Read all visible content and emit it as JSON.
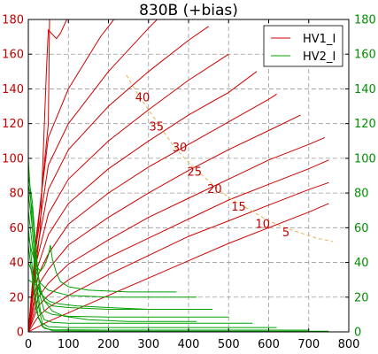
{
  "chart_data": {
    "type": "line",
    "title": "830B (+bias)",
    "xlabel": "",
    "ylabel": "",
    "xlim": [
      0,
      800
    ],
    "ylim": [
      0,
      180
    ],
    "xticks": [
      "0",
      "100",
      "200",
      "300",
      "400",
      "500",
      "600",
      "700",
      "800"
    ],
    "yticks_left": [
      "0",
      "20",
      "40",
      "60",
      "80",
      "100",
      "120",
      "140",
      "160",
      "180"
    ],
    "yticks_right": [
      "0",
      "20",
      "40",
      "60",
      "80",
      "100",
      "120",
      "140",
      "160",
      "180"
    ],
    "grid": true,
    "legend_position": "top-right",
    "legend": [
      {
        "label": "HV1_I",
        "color": "#d00000"
      },
      {
        "label": "HV2_I",
        "color": "#00a000"
      }
    ],
    "colors": {
      "red": "#d00000",
      "green": "#00a000",
      "dissipation": "#e8b44c",
      "left_axis": "#c00000",
      "right_axis": "#009000"
    },
    "series": [
      {
        "group": "HV1_I",
        "points": [
          [
            0,
            0
          ],
          [
            20,
            50
          ],
          [
            50,
            120
          ],
          [
            53,
            182
          ]
        ]
      },
      {
        "group": "HV1_I",
        "points": [
          [
            0,
            0
          ],
          [
            30,
            60
          ],
          [
            45,
            150
          ],
          [
            50,
            174
          ],
          [
            70,
            169
          ],
          [
            80,
            172
          ],
          [
            100,
            182
          ]
        ]
      },
      {
        "group": "HV1_I",
        "points": [
          [
            0,
            0
          ],
          [
            20,
            55
          ],
          [
            50,
            112
          ],
          [
            100,
            140
          ],
          [
            180,
            170
          ],
          [
            220,
            182
          ]
        ]
      },
      {
        "group": "HV1_I",
        "points": [
          [
            0,
            0
          ],
          [
            20,
            50
          ],
          [
            50,
            96
          ],
          [
            100,
            120
          ],
          [
            200,
            150
          ],
          [
            300,
            175
          ],
          [
            330,
            182
          ]
        ]
      },
      {
        "group": "HV1_I",
        "points": [
          [
            0,
            0
          ],
          [
            20,
            45
          ],
          [
            50,
            82
          ],
          [
            100,
            105
          ],
          [
            200,
            130
          ],
          [
            300,
            150
          ],
          [
            400,
            168
          ],
          [
            450,
            176
          ]
        ]
      },
      {
        "group": "HV1_I",
        "points": [
          [
            0,
            0
          ],
          [
            20,
            40
          ],
          [
            50,
            68
          ],
          [
            100,
            88
          ],
          [
            200,
            110
          ],
          [
            300,
            128
          ],
          [
            400,
            145
          ],
          [
            500,
            160
          ]
        ]
      },
      {
        "group": "HV1_I",
        "points": [
          [
            0,
            0
          ],
          [
            20,
            35
          ],
          [
            50,
            56
          ],
          [
            100,
            74
          ],
          [
            200,
            94
          ],
          [
            300,
            110
          ],
          [
            400,
            125
          ],
          [
            500,
            138
          ],
          [
            570,
            150
          ]
        ]
      },
      {
        "group": "HV1_I",
        "points": [
          [
            0,
            0
          ],
          [
            25,
            33
          ],
          [
            50,
            45
          ],
          [
            100,
            62
          ],
          [
            200,
            80
          ],
          [
            300,
            95
          ],
          [
            400,
            108
          ],
          [
            500,
            121
          ],
          [
            600,
            134
          ],
          [
            620,
            137
          ]
        ]
      },
      {
        "group": "HV1_I",
        "points": [
          [
            0,
            0
          ],
          [
            25,
            27
          ],
          [
            50,
            36
          ],
          [
            100,
            50
          ],
          [
            200,
            66
          ],
          [
            300,
            80
          ],
          [
            400,
            93
          ],
          [
            500,
            105
          ],
          [
            600,
            116
          ],
          [
            680,
            125
          ]
        ]
      },
      {
        "group": "HV1_I",
        "points": [
          [
            0,
            0
          ],
          [
            25,
            20
          ],
          [
            50,
            28
          ],
          [
            100,
            39
          ],
          [
            200,
            53
          ],
          [
            300,
            66
          ],
          [
            400,
            77
          ],
          [
            500,
            88
          ],
          [
            600,
            99
          ],
          [
            700,
            108
          ],
          [
            740,
            112
          ]
        ]
      },
      {
        "group": "HV1_I",
        "points": [
          [
            0,
            0
          ],
          [
            25,
            15
          ],
          [
            50,
            21
          ],
          [
            100,
            30
          ],
          [
            200,
            43
          ],
          [
            300,
            54
          ],
          [
            400,
            65
          ],
          [
            500,
            76
          ],
          [
            600,
            85
          ],
          [
            700,
            94
          ],
          [
            750,
            99
          ]
        ]
      },
      {
        "group": "HV1_I",
        "points": [
          [
            0,
            0
          ],
          [
            25,
            9
          ],
          [
            50,
            14
          ],
          [
            100,
            21
          ],
          [
            200,
            33
          ],
          [
            300,
            44
          ],
          [
            400,
            55
          ],
          [
            500,
            64
          ],
          [
            600,
            73
          ],
          [
            700,
            82
          ],
          [
            750,
            86
          ]
        ]
      },
      {
        "group": "HV1_I",
        "points": [
          [
            0,
            0
          ],
          [
            50,
            6
          ],
          [
            100,
            11
          ],
          [
            200,
            21
          ],
          [
            300,
            31
          ],
          [
            400,
            41
          ],
          [
            500,
            51
          ],
          [
            600,
            60
          ],
          [
            700,
            69
          ],
          [
            750,
            74
          ]
        ]
      },
      {
        "group": "HV2_I",
        "points": [
          [
            0,
            100
          ],
          [
            5,
            80
          ],
          [
            10,
            60
          ],
          [
            15,
            45
          ],
          [
            20,
            35
          ],
          [
            30,
            28
          ],
          [
            50,
            24
          ],
          [
            100,
            21
          ],
          [
            200,
            20
          ],
          [
            350,
            20
          ],
          [
            420,
            20
          ]
        ]
      },
      {
        "group": "HV2_I",
        "points": [
          [
            0,
            55
          ],
          [
            10,
            45
          ],
          [
            20,
            38
          ],
          [
            30,
            35
          ],
          [
            40,
            38
          ],
          [
            50,
            44
          ],
          [
            55,
            50
          ],
          [
            60,
            42
          ],
          [
            70,
            34
          ],
          [
            80,
            29
          ],
          [
            100,
            26
          ],
          [
            150,
            24
          ],
          [
            250,
            23
          ],
          [
            370,
            23
          ]
        ]
      },
      {
        "group": "HV2_I",
        "points": [
          [
            0,
            85
          ],
          [
            10,
            70
          ],
          [
            20,
            40
          ],
          [
            30,
            25
          ],
          [
            40,
            18
          ],
          [
            60,
            15
          ],
          [
            100,
            14
          ],
          [
            200,
            13
          ],
          [
            300,
            13
          ],
          [
            460,
            13
          ]
        ]
      },
      {
        "group": "HV2_I",
        "points": [
          [
            0,
            90
          ],
          [
            10,
            75
          ],
          [
            20,
            45
          ],
          [
            30,
            20
          ],
          [
            40,
            12
          ],
          [
            60,
            10
          ],
          [
            100,
            9
          ],
          [
            200,
            8.5
          ],
          [
            350,
            8.5
          ],
          [
            500,
            8.5
          ]
        ]
      },
      {
        "group": "HV2_I",
        "points": [
          [
            0,
            80
          ],
          [
            10,
            60
          ],
          [
            20,
            30
          ],
          [
            30,
            12
          ],
          [
            40,
            7
          ],
          [
            60,
            5.5
          ],
          [
            100,
            5
          ],
          [
            300,
            5
          ],
          [
            560,
            5
          ]
        ]
      },
      {
        "group": "HV2_I",
        "points": [
          [
            0,
            70
          ],
          [
            15,
            40
          ],
          [
            25,
            15
          ],
          [
            35,
            5
          ],
          [
            50,
            3
          ],
          [
            100,
            2.5
          ],
          [
            300,
            2.5
          ],
          [
            620,
            2.5
          ]
        ]
      },
      {
        "group": "HV2_I",
        "points": [
          [
            0,
            60
          ],
          [
            15,
            25
          ],
          [
            25,
            8
          ],
          [
            40,
            2
          ],
          [
            60,
            1.2
          ],
          [
            200,
            1
          ],
          [
            700,
            1
          ]
        ]
      },
      {
        "group": "HV2_I",
        "points": [
          [
            0,
            50
          ],
          [
            20,
            12
          ],
          [
            35,
            3
          ],
          [
            60,
            0.6
          ],
          [
            200,
            0.4
          ],
          [
            750,
            0.4
          ]
        ]
      },
      {
        "group": "HV2_I",
        "points": [
          [
            0,
            40
          ],
          [
            20,
            28
          ],
          [
            30,
            22
          ],
          [
            40,
            20
          ],
          [
            50,
            18
          ],
          [
            60,
            17
          ],
          [
            80,
            16
          ],
          [
            120,
            15
          ],
          [
            200,
            14
          ],
          [
            300,
            13
          ],
          [
            330,
            13
          ]
        ]
      },
      {
        "group": "HV2_I",
        "points": [
          [
            0,
            30
          ],
          [
            25,
            26
          ],
          [
            40,
            18
          ],
          [
            60,
            12
          ],
          [
            90,
            9
          ],
          [
            150,
            7
          ],
          [
            250,
            6
          ],
          [
            420,
            6
          ]
        ]
      }
    ],
    "dissipation_curve": {
      "color": "#e8b44c",
      "points": [
        [
          245,
          148
        ],
        [
          270,
          138
        ],
        [
          300,
          128
        ],
        [
          330,
          118
        ],
        [
          360,
          108
        ],
        [
          390,
          100
        ],
        [
          420,
          93
        ],
        [
          450,
          87
        ],
        [
          480,
          81
        ],
        [
          510,
          76
        ],
        [
          540,
          72
        ],
        [
          570,
          68
        ],
        [
          600,
          64
        ],
        [
          640,
          60
        ],
        [
          680,
          57
        ],
        [
          720,
          54
        ],
        [
          760,
          52
        ]
      ]
    },
    "contour_labels": [
      {
        "text": "40",
        "x": 285,
        "y": 135
      },
      {
        "text": "35",
        "x": 320,
        "y": 118
      },
      {
        "text": "30",
        "x": 378,
        "y": 106
      },
      {
        "text": "25",
        "x": 415,
        "y": 92
      },
      {
        "text": "20",
        "x": 465,
        "y": 82
      },
      {
        "text": "15",
        "x": 525,
        "y": 72
      },
      {
        "text": "10",
        "x": 585,
        "y": 62
      },
      {
        "text": "5",
        "x": 643,
        "y": 57
      }
    ]
  }
}
